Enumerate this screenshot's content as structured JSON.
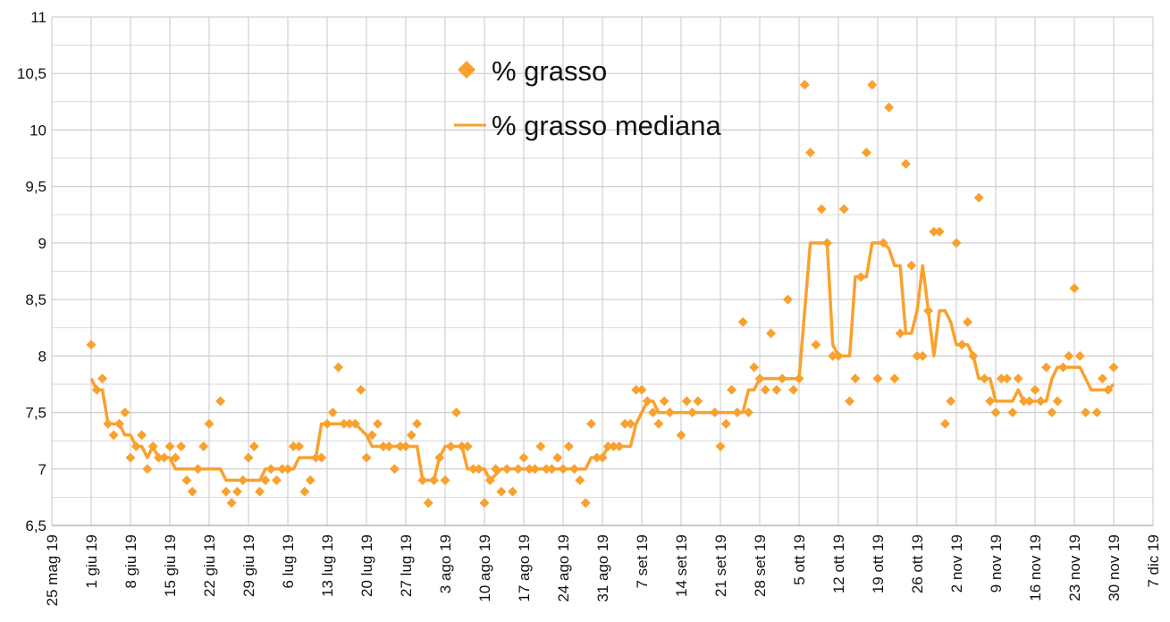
{
  "chart_data": {
    "type": "line",
    "title": "",
    "xlabel": "",
    "ylabel": "",
    "ylim": [
      6.5,
      11
    ],
    "y_ticks": [
      "6,5",
      "7",
      "7,5",
      "8",
      "8,5",
      "9",
      "9,5",
      "10",
      "10,5",
      "11"
    ],
    "y_tick_values": [
      6.5,
      7,
      7.5,
      8,
      8.5,
      9,
      9.5,
      10,
      10.5,
      11
    ],
    "x_unit": "days since 25 mag 19",
    "xlim": [
      0,
      196
    ],
    "x_ticks": [
      "25 mag 19",
      "1 giu 19",
      "8 giu 19",
      "15 giu 19",
      "22 giu 19",
      "29 giu 19",
      "6 lug 19",
      "13 lug 19",
      "20 lug 19",
      "27 lug 19",
      "3 ago 19",
      "10 ago 19",
      "17 ago 19",
      "24 ago 19",
      "31 ago 19",
      "7 set 19",
      "14 set 19",
      "21 set 19",
      "28 set 19",
      "5 ott 19",
      "12 ott 19",
      "19 ott 19",
      "26 ott 19",
      "2 nov 19",
      "9 nov 19",
      "16 nov 19",
      "23 nov 19",
      "30 nov 19",
      "7 dic 19"
    ],
    "grid": true,
    "legend_position": "top-center",
    "colors": {
      "series": "#f9a12e",
      "grid": "#d0d0d0"
    },
    "series": [
      {
        "name": "% grasso",
        "kind": "scatter",
        "points": [
          [
            7,
            8.1
          ],
          [
            8,
            7.7
          ],
          [
            9,
            7.8
          ],
          [
            10,
            7.4
          ],
          [
            11,
            7.3
          ],
          [
            12,
            7.4
          ],
          [
            13,
            7.5
          ],
          [
            14,
            7.1
          ],
          [
            15,
            7.2
          ],
          [
            16,
            7.3
          ],
          [
            17,
            7.0
          ],
          [
            18,
            7.2
          ],
          [
            19,
            7.1
          ],
          [
            20,
            7.1
          ],
          [
            21,
            7.2
          ],
          [
            22,
            7.1
          ],
          [
            23,
            7.2
          ],
          [
            24,
            6.9
          ],
          [
            25,
            6.8
          ],
          [
            26,
            7.0
          ],
          [
            27,
            7.2
          ],
          [
            28,
            7.4
          ],
          [
            30,
            7.6
          ],
          [
            31,
            6.8
          ],
          [
            32,
            6.7
          ],
          [
            33,
            6.8
          ],
          [
            34,
            6.9
          ],
          [
            35,
            7.1
          ],
          [
            36,
            7.2
          ],
          [
            37,
            6.8
          ],
          [
            38,
            6.9
          ],
          [
            39,
            7.0
          ],
          [
            40,
            6.9
          ],
          [
            41,
            7.0
          ],
          [
            42,
            7.0
          ],
          [
            43,
            7.2
          ],
          [
            44,
            7.2
          ],
          [
            45,
            6.8
          ],
          [
            46,
            6.9
          ],
          [
            47,
            7.1
          ],
          [
            48,
            7.1
          ],
          [
            49,
            7.4
          ],
          [
            50,
            7.5
          ],
          [
            51,
            7.9
          ],
          [
            52,
            7.4
          ],
          [
            53,
            7.4
          ],
          [
            54,
            7.4
          ],
          [
            55,
            7.7
          ],
          [
            56,
            7.1
          ],
          [
            57,
            7.3
          ],
          [
            58,
            7.4
          ],
          [
            59,
            7.2
          ],
          [
            60,
            7.2
          ],
          [
            61,
            7.0
          ],
          [
            62,
            7.2
          ],
          [
            63,
            7.2
          ],
          [
            64,
            7.3
          ],
          [
            65,
            7.4
          ],
          [
            66,
            6.9
          ],
          [
            67,
            6.7
          ],
          [
            68,
            6.9
          ],
          [
            69,
            7.1
          ],
          [
            70,
            6.9
          ],
          [
            71,
            7.2
          ],
          [
            72,
            7.5
          ],
          [
            73,
            7.2
          ],
          [
            74,
            7.2
          ],
          [
            75,
            7.0
          ],
          [
            76,
            7.0
          ],
          [
            77,
            6.7
          ],
          [
            78,
            6.9
          ],
          [
            79,
            7.0
          ],
          [
            80,
            6.8
          ],
          [
            81,
            7.0
          ],
          [
            82,
            6.8
          ],
          [
            83,
            7.0
          ],
          [
            84,
            7.1
          ],
          [
            85,
            7.0
          ],
          [
            86,
            7.0
          ],
          [
            87,
            7.2
          ],
          [
            88,
            7.0
          ],
          [
            89,
            7.0
          ],
          [
            90,
            7.1
          ],
          [
            91,
            7.0
          ],
          [
            92,
            7.2
          ],
          [
            93,
            7.0
          ],
          [
            94,
            6.9
          ],
          [
            95,
            6.7
          ],
          [
            96,
            7.4
          ],
          [
            97,
            7.1
          ],
          [
            98,
            7.1
          ],
          [
            99,
            7.2
          ],
          [
            100,
            7.2
          ],
          [
            101,
            7.2
          ],
          [
            102,
            7.4
          ],
          [
            103,
            7.4
          ],
          [
            104,
            7.7
          ],
          [
            105,
            7.7
          ],
          [
            106,
            7.6
          ],
          [
            107,
            7.5
          ],
          [
            108,
            7.4
          ],
          [
            109,
            7.6
          ],
          [
            110,
            7.5
          ],
          [
            112,
            7.3
          ],
          [
            113,
            7.6
          ],
          [
            114,
            7.5
          ],
          [
            115,
            7.6
          ],
          [
            118,
            7.5
          ],
          [
            119,
            7.2
          ],
          [
            120,
            7.4
          ],
          [
            121,
            7.7
          ],
          [
            122,
            7.5
          ],
          [
            123,
            8.3
          ],
          [
            124,
            7.5
          ],
          [
            125,
            7.9
          ],
          [
            126,
            7.8
          ],
          [
            127,
            7.7
          ],
          [
            128,
            8.2
          ],
          [
            129,
            7.7
          ],
          [
            130,
            7.8
          ],
          [
            131,
            8.5
          ],
          [
            132,
            7.7
          ],
          [
            133,
            7.8
          ],
          [
            134,
            10.4
          ],
          [
            135,
            9.8
          ],
          [
            136,
            8.1
          ],
          [
            137,
            9.3
          ],
          [
            138,
            9.0
          ],
          [
            139,
            8.0
          ],
          [
            140,
            8.0
          ],
          [
            141,
            9.3
          ],
          [
            142,
            7.6
          ],
          [
            143,
            7.8
          ],
          [
            144,
            8.7
          ],
          [
            145,
            9.8
          ],
          [
            146,
            10.4
          ],
          [
            147,
            7.8
          ],
          [
            148,
            9.0
          ],
          [
            149,
            10.2
          ],
          [
            150,
            7.8
          ],
          [
            151,
            8.2
          ],
          [
            152,
            9.7
          ],
          [
            153,
            8.8
          ],
          [
            154,
            8.0
          ],
          [
            155,
            8.0
          ],
          [
            156,
            8.4
          ],
          [
            157,
            9.1
          ],
          [
            158,
            9.1
          ],
          [
            159,
            7.4
          ],
          [
            160,
            7.6
          ],
          [
            161,
            9.0
          ],
          [
            162,
            8.1
          ],
          [
            163,
            8.3
          ],
          [
            164,
            8.0
          ],
          [
            165,
            9.4
          ],
          [
            166,
            7.8
          ],
          [
            167,
            7.6
          ],
          [
            168,
            7.5
          ],
          [
            169,
            7.8
          ],
          [
            170,
            7.8
          ],
          [
            171,
            7.5
          ],
          [
            172,
            7.8
          ],
          [
            173,
            7.6
          ],
          [
            174,
            7.6
          ],
          [
            175,
            7.7
          ],
          [
            176,
            7.6
          ],
          [
            177,
            7.9
          ],
          [
            178,
            7.5
          ],
          [
            179,
            7.6
          ],
          [
            180,
            7.9
          ],
          [
            181,
            8.0
          ],
          [
            182,
            8.6
          ],
          [
            183,
            8.0
          ],
          [
            184,
            7.5
          ],
          [
            186,
            7.5
          ],
          [
            187,
            7.8
          ],
          [
            188,
            7.7
          ],
          [
            189,
            7.9
          ]
        ]
      },
      {
        "name": "% grasso mediana",
        "kind": "line",
        "points": [
          [
            7,
            7.8
          ],
          [
            8,
            7.7
          ],
          [
            9,
            7.7
          ],
          [
            10,
            7.4
          ],
          [
            12,
            7.4
          ],
          [
            13,
            7.3
          ],
          [
            14,
            7.3
          ],
          [
            15,
            7.2
          ],
          [
            16,
            7.2
          ],
          [
            17,
            7.1
          ],
          [
            18,
            7.2
          ],
          [
            19,
            7.1
          ],
          [
            21,
            7.1
          ],
          [
            22,
            7.0
          ],
          [
            30,
            7.0
          ],
          [
            31,
            6.9
          ],
          [
            37,
            6.9
          ],
          [
            38,
            7.0
          ],
          [
            43,
            7.0
          ],
          [
            44,
            7.1
          ],
          [
            47,
            7.1
          ],
          [
            48,
            7.4
          ],
          [
            54,
            7.4
          ],
          [
            56,
            7.3
          ],
          [
            57,
            7.2
          ],
          [
            64,
            7.2
          ],
          [
            65,
            7.2
          ],
          [
            66,
            6.9
          ],
          [
            68,
            6.9
          ],
          [
            69,
            7.1
          ],
          [
            70,
            7.2
          ],
          [
            73,
            7.2
          ],
          [
            74,
            7.0
          ],
          [
            77,
            7.0
          ],
          [
            78,
            6.9
          ],
          [
            80,
            7.0
          ],
          [
            95,
            7.0
          ],
          [
            96,
            7.1
          ],
          [
            98,
            7.1
          ],
          [
            99,
            7.2
          ],
          [
            103,
            7.2
          ],
          [
            104,
            7.4
          ],
          [
            105,
            7.5
          ],
          [
            106,
            7.6
          ],
          [
            107,
            7.6
          ],
          [
            108,
            7.5
          ],
          [
            123,
            7.5
          ],
          [
            124,
            7.7
          ],
          [
            125,
            7.7
          ],
          [
            126,
            7.8
          ],
          [
            133,
            7.8
          ],
          [
            134,
            8.4
          ],
          [
            135,
            9.0
          ],
          [
            138,
            9.0
          ],
          [
            139,
            8.1
          ],
          [
            140,
            8.0
          ],
          [
            142,
            8.0
          ],
          [
            143,
            8.7
          ],
          [
            145,
            8.7
          ],
          [
            146,
            9.0
          ],
          [
            148,
            9.0
          ],
          [
            149,
            8.95
          ],
          [
            150,
            8.8
          ],
          [
            151,
            8.8
          ],
          [
            152,
            8.2
          ],
          [
            153,
            8.2
          ],
          [
            154,
            8.4
          ],
          [
            155,
            8.8
          ],
          [
            156,
            8.4
          ],
          [
            157,
            8.0
          ],
          [
            158,
            8.4
          ],
          [
            159,
            8.4
          ],
          [
            160,
            8.3
          ],
          [
            161,
            8.1
          ],
          [
            163,
            8.1
          ],
          [
            164,
            8.0
          ],
          [
            165,
            7.8
          ],
          [
            167,
            7.8
          ],
          [
            168,
            7.6
          ],
          [
            171,
            7.6
          ],
          [
            172,
            7.7
          ],
          [
            173,
            7.6
          ],
          [
            177,
            7.6
          ],
          [
            178,
            7.8
          ],
          [
            179,
            7.9
          ],
          [
            183,
            7.9
          ],
          [
            184,
            7.8
          ],
          [
            185,
            7.7
          ],
          [
            188,
            7.7
          ],
          [
            189,
            7.75
          ]
        ]
      }
    ]
  }
}
